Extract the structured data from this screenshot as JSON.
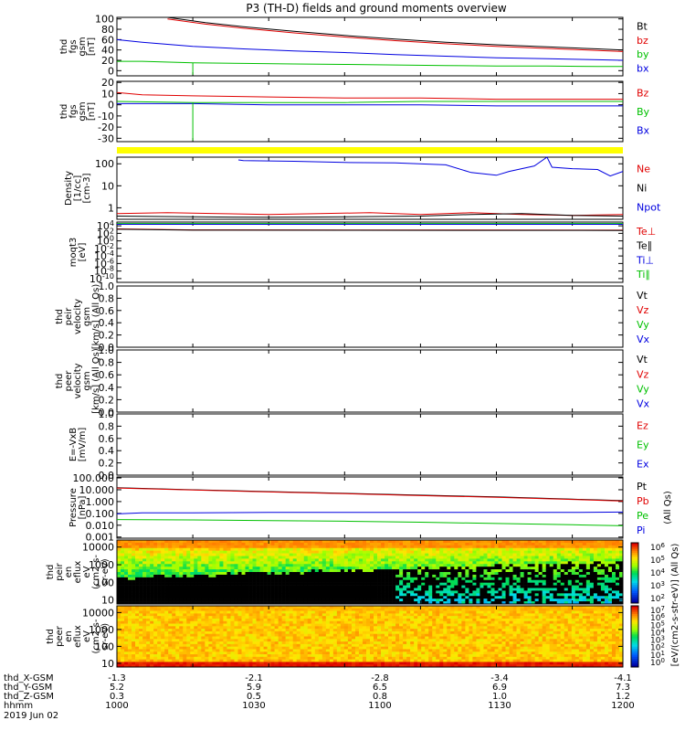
{
  "title": "P3 (TH-D) fields and ground moments overview",
  "footer": {
    "row_labels": [
      "thd_X-GSM",
      "thd_Y-GSM",
      "thd_Z-GSM",
      "hhmm",
      "2019 Jun 02"
    ],
    "columns": [
      [
        "-1.3",
        "5.2",
        "0.3",
        "1000"
      ],
      [
        "-2.1",
        "5.9",
        "0.5",
        "1030"
      ],
      [
        "-2.8",
        "6.5",
        "0.8",
        "1100"
      ],
      [
        "-3.4",
        "6.9",
        "1.0",
        "1130"
      ],
      [
        "-4.1",
        "7.3",
        "1.2",
        "1200"
      ]
    ]
  },
  "colorbar_label": "[eV/(cm2-s-str-eV)] (All Qs)",
  "colorbars": [
    {
      "ticks": [
        "10^6",
        "10^5",
        "10^4",
        "10^3",
        "10^2"
      ]
    },
    {
      "ticks": [
        "10^7",
        "10^6",
        "10^5",
        "10^4",
        "10^3",
        "10^2",
        "10^1",
        "10^0"
      ]
    }
  ],
  "chart_data": [
    {
      "type": "line",
      "ylabel": [
        "thd",
        "fgs",
        "gsm",
        "[nT]"
      ],
      "yticks": [
        "100",
        "80",
        "60",
        "40",
        "20",
        "0"
      ],
      "ylim": [
        -10,
        103
      ],
      "legend": [
        {
          "name": "Bt",
          "color": "#000000"
        },
        {
          "name": "bz",
          "color": "#e00000"
        },
        {
          "name": "by",
          "color": "#00c000"
        },
        {
          "name": "bx",
          "color": "#0000e0"
        }
      ],
      "series": [
        {
          "name": "Bt",
          "color": "#000000",
          "x": [
            1020,
            1035,
            1050,
            1070,
            1090,
            1110,
            1130,
            1150,
            1170,
            1190,
            1200
          ],
          "y": [
            103,
            93,
            85,
            76,
            68,
            61,
            55,
            50,
            46,
            42,
            40
          ]
        },
        {
          "name": "bz",
          "color": "#e00000",
          "x": [
            1020,
            1035,
            1050,
            1070,
            1090,
            1110,
            1130,
            1150,
            1170,
            1190,
            1200
          ],
          "y": [
            100,
            90,
            82,
            73,
            65,
            58,
            52,
            47,
            43,
            39,
            37
          ]
        },
        {
          "name": "by",
          "color": "#00c000",
          "x": [
            1000,
            1010,
            1030,
            1050,
            1070,
            1090,
            1110,
            1130,
            1150,
            1170,
            1190,
            1200
          ],
          "y": [
            18,
            18,
            15,
            14,
            13,
            12,
            11,
            10,
            9,
            9,
            8,
            8
          ]
        },
        {
          "name": "bx",
          "color": "#0000e0",
          "x": [
            1000,
            1010,
            1020,
            1030,
            1050,
            1070,
            1090,
            1110,
            1130,
            1150,
            1170,
            1190,
            1200
          ],
          "y": [
            60,
            55,
            51,
            47,
            42,
            38,
            35,
            31,
            28,
            25,
            23,
            21,
            20
          ]
        }
      ],
      "spikes": [
        {
          "series": "by",
          "x": 1030,
          "y": -8
        }
      ]
    },
    {
      "type": "line",
      "ylabel": [
        "thd",
        "fgs",
        "gsm",
        "[nT]"
      ],
      "yticks": [
        "20",
        "10",
        "0",
        "-10",
        "-20",
        "-30"
      ],
      "ylim": [
        -33,
        21
      ],
      "legend": [
        {
          "name": "Bz",
          "color": "#e00000"
        },
        {
          "name": "By",
          "color": "#00c000"
        },
        {
          "name": "Bx",
          "color": "#0000e0"
        }
      ],
      "series": [
        {
          "name": "Bz",
          "color": "#e00000",
          "x": [
            1000,
            1010,
            1030,
            1060,
            1090,
            1120,
            1150,
            1180,
            1200
          ],
          "y": [
            11,
            9,
            8,
            7,
            6,
            6,
            5,
            5,
            5
          ]
        },
        {
          "name": "By",
          "color": "#00c000",
          "x": [
            1000,
            1030,
            1060,
            1090,
            1120,
            1150,
            1180,
            1200
          ],
          "y": [
            3,
            2,
            2,
            2,
            3,
            3,
            3,
            3
          ]
        },
        {
          "name": "Bx",
          "color": "#0000e0",
          "x": [
            1000,
            1030,
            1060,
            1090,
            1120,
            1150,
            1180,
            1200
          ],
          "y": [
            1,
            1,
            0,
            0,
            0,
            -1,
            -1,
            -1
          ]
        }
      ],
      "spikes": [
        {
          "series": "By",
          "x": 1030,
          "y": -32
        }
      ]
    },
    {
      "type": "line",
      "ylabel": [
        "Density",
        "[1/cc]",
        "[cm-3]"
      ],
      "yticks": [
        "100",
        "10",
        "1"
      ],
      "scale": "log",
      "ylim": [
        0.3,
        200
      ],
      "legend": [
        {
          "name": "Ne",
          "color": "#e00000"
        },
        {
          "name": "Ni",
          "color": "#000000"
        },
        {
          "name": "Npot",
          "color": "#0000e0"
        }
      ],
      "series": [
        {
          "name": "Npot",
          "color": "#0000e0",
          "x": [
            1048,
            1050,
            1070,
            1090,
            1110,
            1130,
            1140,
            1145,
            1150,
            1155,
            1165,
            1170,
            1172,
            1180,
            1190,
            1195,
            1200
          ],
          "y": [
            150,
            140,
            130,
            115,
            110,
            90,
            40,
            35,
            30,
            45,
            80,
            200,
            70,
            60,
            55,
            28,
            45
          ]
        },
        {
          "name": "Ne",
          "color": "#e00000",
          "x": [
            1000,
            1020,
            1040,
            1060,
            1080,
            1100,
            1120,
            1140,
            1160,
            1180,
            1200
          ],
          "y": [
            0.55,
            0.6,
            0.55,
            0.5,
            0.55,
            0.6,
            0.5,
            0.6,
            0.5,
            0.45,
            0.5
          ]
        },
        {
          "name": "Ni",
          "color": "#000000",
          "x": [
            1000,
            1020,
            1040,
            1060,
            1080,
            1100,
            1120,
            1140,
            1160,
            1180,
            1200
          ],
          "y": [
            0.42,
            0.4,
            0.38,
            0.37,
            0.38,
            0.4,
            0.42,
            0.5,
            0.55,
            0.45,
            0.42
          ]
        }
      ]
    },
    {
      "type": "line",
      "ylabel": [
        "moqt3",
        "[eV]"
      ],
      "yticks": [
        "10^4",
        "10^2",
        "10^0",
        "10^-2",
        "10^-4",
        "10^-6",
        "10^-8",
        "10^-10"
      ],
      "scale": "log",
      "ylim": [
        1e-11,
        100000.0
      ],
      "legend": [
        {
          "name": "Te⊥",
          "color": "#e00000"
        },
        {
          "name": "Te∥",
          "color": "#000000"
        },
        {
          "name": "Ti⊥",
          "color": "#0000e0"
        },
        {
          "name": "Ti∥",
          "color": "#00c000"
        }
      ],
      "series": [
        {
          "name": "Ti∥",
          "color": "#00c000",
          "x": [
            1000,
            1200
          ],
          "y": [
            40000,
            40000
          ]
        },
        {
          "name": "Ti⊥",
          "color": "#0000e0",
          "x": [
            1000,
            1200
          ],
          "y": [
            25000,
            25000
          ]
        },
        {
          "name": "Te⊥",
          "color": "#e00000",
          "x": [
            1000,
            1030,
            1200
          ],
          "y": [
            1500,
            800,
            700
          ]
        },
        {
          "name": "Te∥",
          "color": "#000000",
          "x": [
            1000,
            1030,
            1200
          ],
          "y": [
            1200,
            700,
            600
          ]
        }
      ]
    },
    {
      "type": "line",
      "ylabel": [
        "thd",
        "peir",
        "velocity",
        "gsm",
        "[km/s] (All Qs)"
      ],
      "yticks": [
        "1.0",
        "0.8",
        "0.6",
        "0.4",
        "0.2",
        "0.0"
      ],
      "ylim": [
        0,
        1
      ],
      "legend": [
        {
          "name": "Vt",
          "color": "#000000"
        },
        {
          "name": "Vz",
          "color": "#e00000"
        },
        {
          "name": "Vy",
          "color": "#00c000"
        },
        {
          "name": "Vx",
          "color": "#0000e0"
        }
      ],
      "series": []
    },
    {
      "type": "line",
      "ylabel": [
        "thd",
        "peer",
        "velocity",
        "gsm",
        "[km/s] (All Qs)"
      ],
      "yticks": [
        "1.0",
        "0.8",
        "0.6",
        "0.4",
        "0.2",
        "0.0"
      ],
      "ylim": [
        0,
        1
      ],
      "legend": [
        {
          "name": "Vt",
          "color": "#000000"
        },
        {
          "name": "Vz",
          "color": "#e00000"
        },
        {
          "name": "Vy",
          "color": "#00c000"
        },
        {
          "name": "Vx",
          "color": "#0000e0"
        }
      ],
      "series": []
    },
    {
      "type": "line",
      "ylabel": [
        "E=-VxB",
        "[mV/m]"
      ],
      "yticks": [
        "1.0",
        "0.8",
        "0.6",
        "0.4",
        "0.2",
        "0.0"
      ],
      "ylim": [
        0,
        1
      ],
      "legend": [
        {
          "name": "Ez",
          "color": "#e00000"
        },
        {
          "name": "Ey",
          "color": "#00c000"
        },
        {
          "name": "Ex",
          "color": "#0000e0"
        }
      ],
      "series": []
    },
    {
      "type": "line",
      "ylabel": [
        "Pressure",
        "[nPa]"
      ],
      "yticks": [
        "100.000",
        "10.000",
        "1.000",
        "0.100",
        "0.010",
        "0.001"
      ],
      "scale": "log",
      "ylim": [
        0.0008,
        120
      ],
      "legend": [
        {
          "name": "Pt",
          "color": "#000000"
        },
        {
          "name": "Pb",
          "color": "#e00000"
        },
        {
          "name": "Pe",
          "color": "#00c000"
        },
        {
          "name": "Pi",
          "color": "#0000e0"
        }
      ],
      "legend_note": "(All Qs)",
      "series": [
        {
          "name": "Pt",
          "color": "#000000",
          "x": [
            1000,
            1030,
            1060,
            1090,
            1120,
            1150,
            1180,
            1200
          ],
          "y": [
            15,
            10,
            7,
            5,
            3.5,
            2.5,
            1.6,
            1.2
          ]
        },
        {
          "name": "Pb",
          "color": "#e00000",
          "x": [
            1000,
            1030,
            1060,
            1090,
            1120,
            1150,
            1180,
            1200
          ],
          "y": [
            14,
            9.5,
            6.5,
            4.6,
            3.2,
            2.3,
            1.5,
            1.1
          ]
        },
        {
          "name": "Pi",
          "color": "#0000e0",
          "x": [
            1000,
            1010,
            1030,
            1060,
            1090,
            1120,
            1150,
            1180,
            1200
          ],
          "y": [
            0.09,
            0.11,
            0.11,
            0.12,
            0.12,
            0.12,
            0.12,
            0.12,
            0.13
          ]
        },
        {
          "name": "Pe",
          "color": "#00c000",
          "x": [
            1000,
            1030,
            1060,
            1090,
            1120,
            1150,
            1180,
            1200
          ],
          "y": [
            0.03,
            0.028,
            0.025,
            0.022,
            0.018,
            0.014,
            0.011,
            0.009
          ]
        }
      ]
    },
    {
      "type": "heatmap",
      "ylabel": [
        "thd",
        "peir",
        "en",
        "eflux",
        "eV",
        "(cm2-s-",
        "sr-eV)"
      ],
      "yticks": [
        "10000",
        "1000",
        "100",
        "10"
      ],
      "scale": "log",
      "ylim": [
        6,
        25000
      ],
      "cmap": "rainbow"
    },
    {
      "type": "heatmap",
      "ylabel": [
        "thd",
        "peer",
        "en",
        "eflux",
        "eV",
        "(cm2-s-",
        "sr-eV)"
      ],
      "yticks": [
        "10000",
        "1000",
        "100",
        "10"
      ],
      "scale": "log",
      "ylim": [
        6,
        25000
      ],
      "cmap": "rainbow"
    }
  ]
}
